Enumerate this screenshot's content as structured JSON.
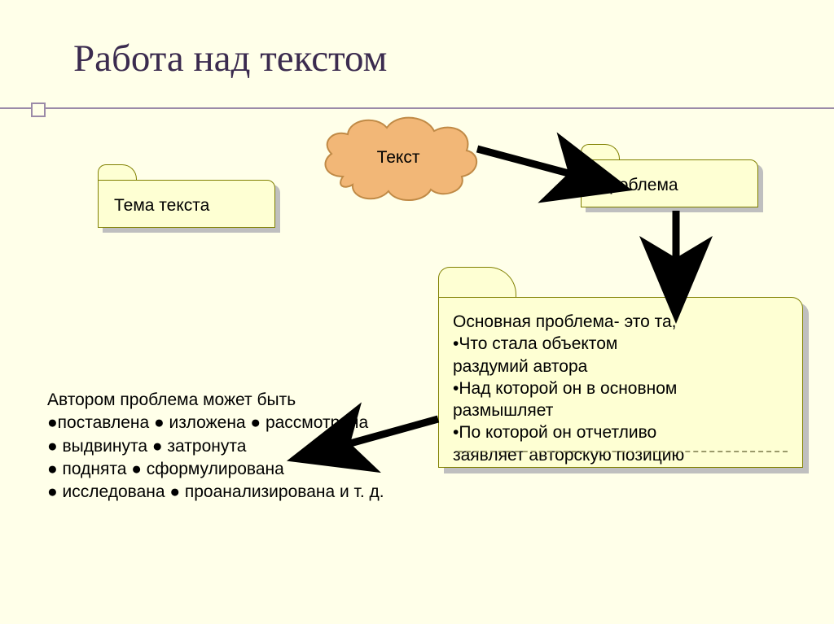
{
  "title": "Работа над текстом",
  "cloud": {
    "label": "Текст",
    "fill": "#f2b777",
    "stroke": "#c08a46"
  },
  "folders": {
    "theme": {
      "label": "Тема текста"
    },
    "problem": {
      "label": "Проблема"
    },
    "main_problem": {
      "lines": [
        "Основная проблема- это та,",
        "•Что стала объектом",
        "раздумий автора",
        "•Над которой он в основном",
        "размышляет",
        "•По которой он отчетливо",
        "заявляет авторскую позицию"
      ]
    }
  },
  "free_text": {
    "lines": [
      "Автором проблема может быть",
      "●поставлена ● изложена ● рассмотрена",
      "● выдвинута ● затронута",
      "● поднята ● сформулирована",
      "● исследована ● проанализирована и т. д."
    ]
  },
  "colors": {
    "background": "#ffffe9",
    "folder_fill": "#feffd3",
    "folder_stroke": "#808000",
    "title_color": "#3b2b4f",
    "rule_color": "#9b8aa8",
    "arrow_color": "#000000"
  },
  "arrows": {
    "a1": {
      "from": "cloud",
      "to": "problem"
    },
    "a2": {
      "from": "problem",
      "to": "main_problem"
    },
    "a3": {
      "from": "main_problem",
      "to": "free_text"
    }
  }
}
